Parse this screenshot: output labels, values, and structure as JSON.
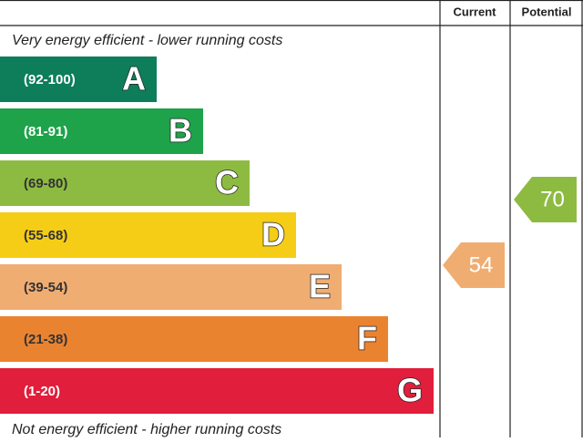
{
  "header": {
    "current": "Current",
    "potential": "Potential"
  },
  "top_label": "Very energy efficient - lower running costs",
  "bottom_label": "Not energy efficient - higher running costs",
  "bands": [
    {
      "range": "(92-100)",
      "letter": "A",
      "color": "#0e7e5a"
    },
    {
      "range": "(81-91)",
      "letter": "B",
      "color": "#1ea34a"
    },
    {
      "range": "(69-80)",
      "letter": "C",
      "color": "#8dbb42"
    },
    {
      "range": "(55-68)",
      "letter": "D",
      "color": "#f6cd16"
    },
    {
      "range": "(39-54)",
      "letter": "E",
      "color": "#f0ad71"
    },
    {
      "range": "(21-38)",
      "letter": "F",
      "color": "#ea8330"
    },
    {
      "range": "(1-20)",
      "letter": "G",
      "color": "#e11e3b"
    }
  ],
  "current": {
    "value": 54,
    "color": "#f0ad71"
  },
  "potential": {
    "value": 70,
    "color": "#8dbb42"
  }
}
